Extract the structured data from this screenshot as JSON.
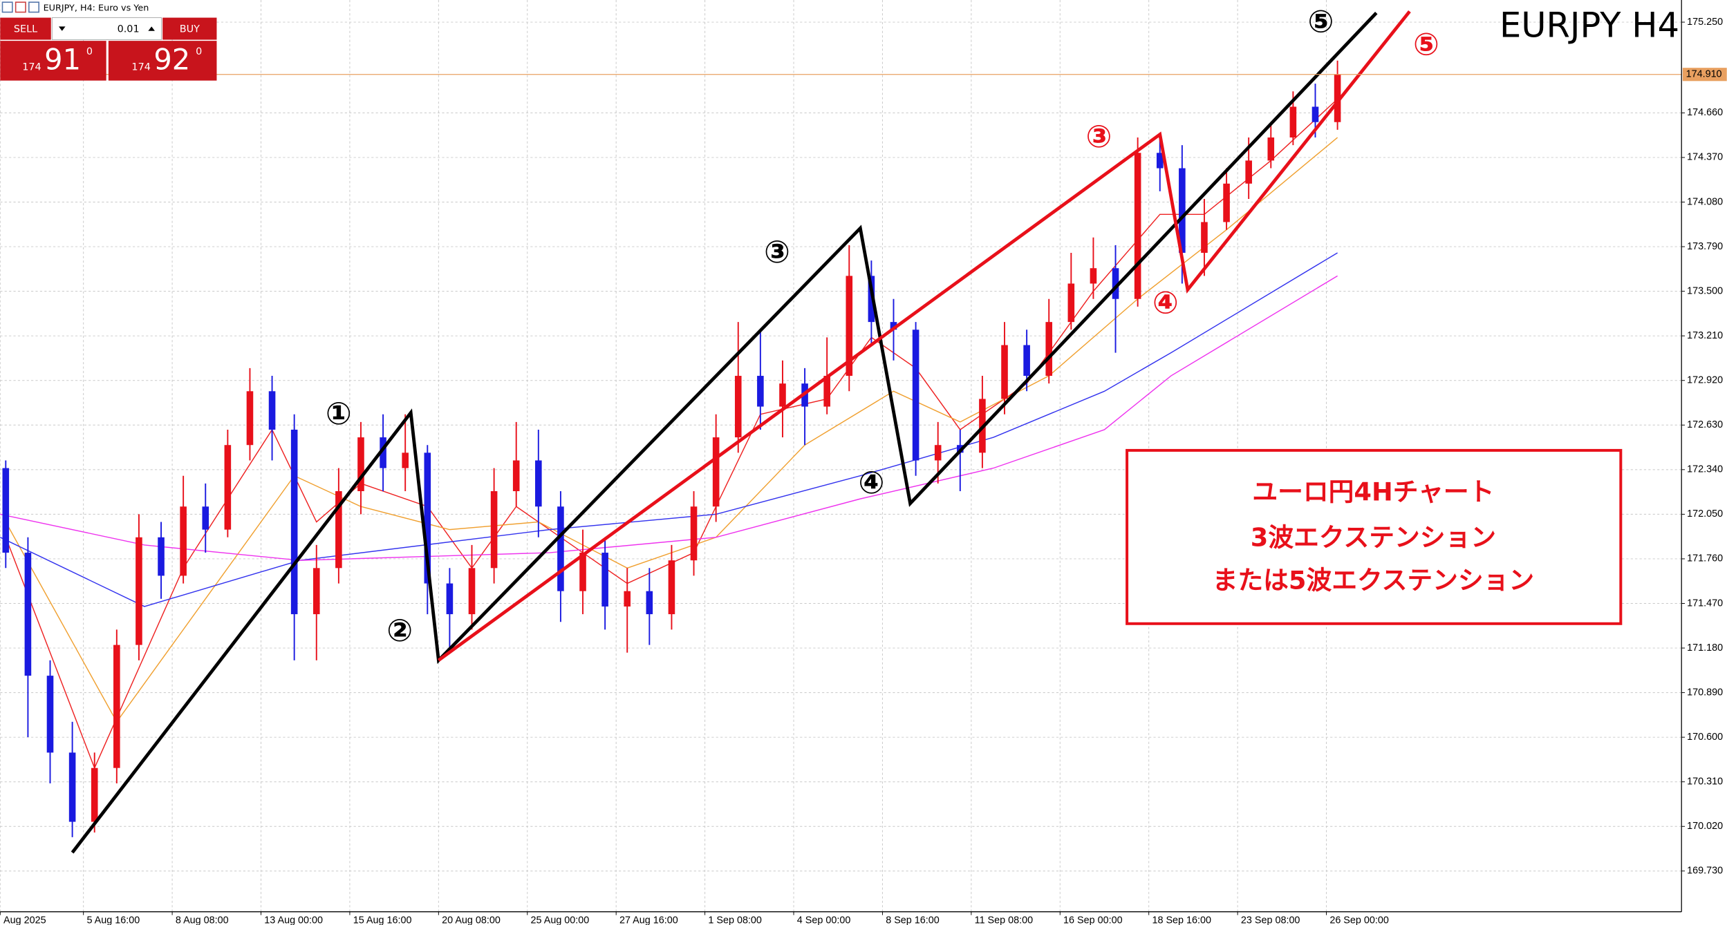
{
  "ui": {
    "window_title": "EURJPY, H4:  Euro vs Yen",
    "sell_button": "SELL",
    "lot_size": "0.01",
    "buy_button": "BUY",
    "sell_price": {
      "prefix": "174",
      "main": "91",
      "sup": "0"
    },
    "buy_price": {
      "prefix": "174",
      "main": "92",
      "sup": "0"
    }
  },
  "chart_data": {
    "type": "candlestick",
    "title": "EURJPY H4",
    "annotations": [
      "ユーロ円4Hチャート",
      "3波エクステンション",
      "または5波エクステンション"
    ],
    "xlim": [
      -15,
      288
    ],
    "ylim": [
      169.465,
      175.394
    ],
    "xticks": [
      {
        "value": -15,
        "label": "Aug 2025"
      },
      {
        "value": 0,
        "label": "5 Aug 16:00"
      },
      {
        "value": 16,
        "label": "8 Aug 08:00"
      },
      {
        "value": 32,
        "label": "13 Aug 00:00"
      },
      {
        "value": 48,
        "label": "15 Aug 16:00"
      },
      {
        "value": 64,
        "label": "20 Aug 08:00"
      },
      {
        "value": 80,
        "label": "25 Aug 00:00"
      },
      {
        "value": 96,
        "label": "27 Aug 16:00"
      },
      {
        "value": 112,
        "label": "1 Sep 08:00"
      },
      {
        "value": 128,
        "label": "4 Sep 00:00"
      },
      {
        "value": 144,
        "label": "8 Sep 16:00"
      },
      {
        "value": 160,
        "label": "11 Sep 08:00"
      },
      {
        "value": 176,
        "label": "16 Sep 00:00"
      },
      {
        "value": 192,
        "label": "18 Sep 16:00"
      },
      {
        "value": 208,
        "label": "23 Sep 08:00"
      },
      {
        "value": 224,
        "label": "26 Sep 00:00"
      }
    ],
    "yticks": [
      {
        "value": 175.25,
        "label": "175.250"
      },
      {
        "value": 174.66,
        "label": "174.660"
      },
      {
        "value": 174.37,
        "label": "174.370"
      },
      {
        "value": 174.08,
        "label": "174.080"
      },
      {
        "value": 173.79,
        "label": "173.790"
      },
      {
        "value": 173.5,
        "label": "173.500"
      },
      {
        "value": 173.21,
        "label": "173.210"
      },
      {
        "value": 172.92,
        "label": "172.920"
      },
      {
        "value": 172.63,
        "label": "172.630"
      },
      {
        "value": 172.34,
        "label": "172.340"
      },
      {
        "value": 172.05,
        "label": "172.050"
      },
      {
        "value": 171.76,
        "label": "171.760"
      },
      {
        "value": 171.47,
        "label": "171.470"
      },
      {
        "value": 171.18,
        "label": "171.180"
      },
      {
        "value": 170.89,
        "label": "170.890"
      },
      {
        "value": 170.6,
        "label": "170.600"
      },
      {
        "value": 170.31,
        "label": "170.310"
      },
      {
        "value": 170.02,
        "label": "170.020"
      },
      {
        "value": 169.73,
        "label": "169.730"
      }
    ],
    "grid": true,
    "up_color": "#e8101a",
    "down_color": "#1a1ae0",
    "last_price": {
      "value": 174.91,
      "label": "174.910"
    },
    "last_color": "#e8a060",
    "x": [
      -14,
      -10,
      -6,
      -2,
      2,
      6,
      10,
      14,
      18,
      22,
      26,
      30,
      34,
      38,
      42,
      46,
      50,
      54,
      58,
      62,
      66,
      70,
      74,
      78,
      82,
      86,
      90,
      94,
      98,
      102,
      106,
      110,
      114,
      118,
      122,
      126,
      130,
      134,
      138,
      142,
      146,
      150,
      154,
      158,
      162,
      166,
      170,
      174,
      178,
      182,
      186,
      190,
      194,
      198,
      202,
      206,
      210,
      214,
      218,
      222,
      226
    ],
    "open": [
      172.35,
      171.8,
      171.0,
      170.5,
      170.05,
      170.4,
      171.2,
      171.9,
      171.65,
      172.1,
      171.95,
      172.5,
      172.85,
      172.6,
      171.4,
      171.7,
      172.2,
      172.55,
      172.35,
      172.45,
      171.6,
      171.4,
      171.7,
      172.2,
      172.4,
      172.1,
      171.55,
      171.8,
      171.45,
      171.55,
      171.4,
      171.75,
      172.1,
      172.55,
      172.95,
      172.75,
      172.9,
      172.75,
      172.95,
      173.6,
      173.3,
      173.25,
      172.4,
      172.5,
      172.45,
      172.8,
      173.15,
      172.95,
      173.3,
      173.55,
      173.65,
      173.45,
      174.4,
      174.3,
      173.75,
      173.95,
      174.2,
      174.35,
      174.5,
      174.7,
      174.6
    ],
    "high": [
      172.4,
      171.9,
      171.1,
      170.7,
      170.5,
      171.3,
      172.05,
      172.0,
      172.3,
      172.25,
      172.6,
      173.0,
      172.95,
      172.7,
      171.85,
      172.35,
      172.65,
      172.7,
      172.7,
      172.5,
      171.7,
      171.85,
      172.35,
      172.65,
      172.6,
      172.2,
      171.95,
      171.9,
      171.7,
      171.7,
      171.85,
      172.2,
      172.7,
      173.3,
      173.25,
      173.05,
      173.0,
      173.2,
      173.8,
      173.7,
      173.45,
      173.3,
      172.65,
      172.6,
      172.95,
      173.3,
      173.25,
      173.45,
      173.75,
      173.85,
      173.8,
      174.5,
      174.5,
      174.45,
      174.1,
      174.3,
      174.5,
      174.6,
      174.8,
      174.85,
      175.0
    ],
    "low": [
      171.7,
      170.6,
      170.3,
      169.95,
      169.98,
      170.3,
      171.1,
      171.5,
      171.6,
      171.8,
      171.9,
      172.4,
      172.4,
      171.1,
      171.1,
      171.6,
      172.05,
      172.2,
      172.2,
      171.4,
      171.15,
      171.3,
      171.6,
      172.1,
      171.9,
      171.35,
      171.4,
      171.3,
      171.15,
      171.2,
      171.3,
      171.65,
      172.0,
      172.45,
      172.6,
      172.55,
      172.5,
      172.7,
      172.85,
      173.15,
      173.05,
      172.3,
      172.25,
      172.2,
      172.35,
      172.7,
      172.85,
      172.9,
      173.25,
      173.45,
      173.1,
      173.4,
      174.15,
      173.55,
      173.6,
      173.9,
      174.1,
      174.3,
      174.45,
      174.5,
      174.55
    ],
    "close": [
      171.8,
      171.0,
      170.5,
      170.05,
      170.4,
      171.2,
      171.9,
      171.65,
      172.1,
      171.95,
      172.5,
      172.85,
      172.6,
      171.4,
      171.7,
      172.2,
      172.55,
      172.35,
      172.45,
      171.6,
      171.4,
      171.7,
      172.2,
      172.4,
      172.1,
      171.55,
      171.8,
      171.45,
      171.55,
      171.4,
      171.75,
      172.1,
      172.55,
      172.95,
      172.75,
      172.9,
      172.75,
      172.95,
      173.6,
      173.3,
      173.25,
      172.4,
      172.5,
      172.45,
      172.8,
      173.15,
      172.95,
      173.3,
      173.55,
      173.65,
      173.45,
      174.4,
      174.3,
      173.75,
      173.95,
      174.2,
      174.35,
      174.5,
      174.7,
      174.6,
      174.91
    ],
    "lines": [
      {
        "color": "#ee2222",
        "x": [
          -14,
          2,
          18,
          34,
          42,
          50,
          62,
          70,
          78,
          86,
          98,
          110,
          122,
          134,
          142,
          150,
          158,
          170,
          182,
          194,
          202,
          214,
          226
        ],
        "values": [
          171.9,
          170.4,
          171.7,
          172.6,
          172.0,
          172.25,
          172.1,
          171.7,
          172.1,
          171.9,
          171.6,
          171.8,
          172.7,
          172.8,
          173.2,
          173.0,
          172.6,
          172.9,
          173.5,
          174.0,
          174.0,
          174.35,
          174.75
        ]
      },
      {
        "color": "#f0a030",
        "x": [
          -14,
          6,
          22,
          38,
          50,
          66,
          82,
          98,
          114,
          130,
          146,
          158,
          174,
          190,
          206,
          226
        ],
        "values": [
          172.0,
          170.7,
          171.5,
          172.3,
          172.1,
          171.95,
          172.0,
          171.7,
          171.9,
          172.5,
          172.85,
          172.65,
          172.95,
          173.45,
          173.9,
          174.5
        ]
      },
      {
        "color": "#3333ee",
        "x": [
          -15,
          11,
          39,
          84,
          114,
          140,
          164,
          184,
          196,
          226
        ],
        "values": [
          171.9,
          171.45,
          171.75,
          171.95,
          172.05,
          172.3,
          172.55,
          172.85,
          173.1,
          173.75
        ]
      },
      {
        "color": "#ee33ee",
        "x": [
          -15,
          11,
          39,
          84,
          114,
          140,
          164,
          184,
          196,
          226
        ],
        "values": [
          172.05,
          171.85,
          171.75,
          171.8,
          171.9,
          172.15,
          172.35,
          172.6,
          172.95,
          173.6
        ]
      }
    ],
    "wave_lines": [
      {
        "color": "#000000",
        "x": [
          -2,
          59,
          64,
          140,
          149,
          233
        ],
        "values": [
          169.85,
          172.71,
          171.1,
          173.91,
          172.12,
          175.31
        ]
      },
      {
        "color": "#e8101a",
        "x": [
          64,
          194,
          199,
          239
        ],
        "values": [
          171.1,
          174.52,
          173.51,
          175.32
        ]
      }
    ],
    "wave_labels": [
      {
        "text": "①",
        "color": "#000000",
        "x": 46,
        "y": 172.69
      },
      {
        "text": "②",
        "color": "#000000",
        "x": 57,
        "y": 171.28
      },
      {
        "text": "③",
        "color": "#000000",
        "x": 125,
        "y": 173.74
      },
      {
        "text": "④",
        "color": "#000000",
        "x": 142,
        "y": 172.24
      },
      {
        "text": "⑤",
        "color": "#000000",
        "x": 223,
        "y": 175.24
      },
      {
        "text": "③",
        "color": "#e8101a",
        "x": 183,
        "y": 174.49
      },
      {
        "text": "④",
        "color": "#e8101a",
        "x": 195,
        "y": 173.41
      },
      {
        "text": "⑤",
        "color": "#e8101a",
        "x": 242,
        "y": 175.09
      }
    ]
  }
}
